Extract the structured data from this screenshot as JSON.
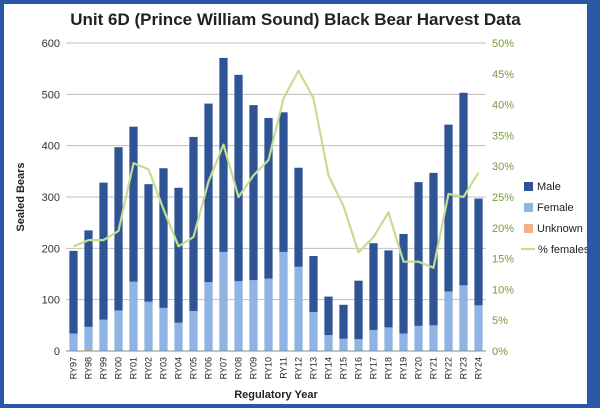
{
  "chart_data": {
    "type": "bar",
    "stacked": true,
    "title": "Unit 6D (Prince William Sound) Black Bear Harvest Data",
    "xlabel": "Regulatory Year",
    "ylabel": "Sealed Bears",
    "ylim": [
      0,
      600
    ],
    "y2lim": [
      0,
      0.5
    ],
    "yticks": [
      "0",
      "100",
      "200",
      "300",
      "400",
      "500",
      "600"
    ],
    "y2ticks": [
      "0%",
      "5%",
      "10%",
      "15%",
      "20%",
      "25%",
      "30%",
      "35%",
      "40%",
      "45%",
      "50%"
    ],
    "grid": true,
    "legend_position": "right",
    "categories": [
      "RY97",
      "RY98",
      "RY99",
      "RY00",
      "RY01",
      "RY02",
      "RY03",
      "RY04",
      "RY05",
      "RY06",
      "RY07",
      "RY08",
      "RY09",
      "RY10",
      "RY11",
      "RY12",
      "RY13",
      "RY14",
      "RY15",
      "RY16",
      "RY17",
      "RY18",
      "RY19",
      "RY20",
      "RY21",
      "RY22",
      "RY23",
      "RY24"
    ],
    "series": [
      {
        "name": "Male",
        "color": "#2f5496",
        "values": [
          161,
          188,
          267,
          318,
          302,
          229,
          272,
          263,
          339,
          348,
          378,
          402,
          341,
          313,
          272,
          193,
          109,
          75,
          66,
          114,
          169,
          150,
          194,
          280,
          297,
          325,
          375,
          208
        ]
      },
      {
        "name": "Female",
        "color": "#8eb4e3",
        "values": [
          33,
          45,
          60,
          78,
          134,
          95,
          83,
          54,
          77,
          133,
          192,
          135,
          137,
          140,
          192,
          163,
          75,
          30,
          23,
          22,
          40,
          45,
          33,
          48,
          49,
          115,
          127,
          88
        ]
      },
      {
        "name": "Unknown",
        "color": "#f4b183",
        "values": [
          1,
          2,
          1,
          1,
          1,
          1,
          1,
          1,
          1,
          1,
          1,
          1,
          1,
          1,
          1,
          1,
          1,
          1,
          1,
          1,
          1,
          1,
          1,
          1,
          1,
          1,
          1,
          1
        ]
      }
    ],
    "line_series": {
      "name": "% females",
      "color": "#c5dd91",
      "values": [
        0.17,
        0.18,
        0.18,
        0.195,
        0.305,
        0.295,
        0.23,
        0.17,
        0.185,
        0.275,
        0.335,
        0.25,
        0.285,
        0.31,
        0.41,
        0.455,
        0.41,
        0.285,
        0.235,
        0.16,
        0.185,
        0.225,
        0.145,
        0.145,
        0.135,
        0.255,
        0.25,
        0.29
      ]
    }
  }
}
